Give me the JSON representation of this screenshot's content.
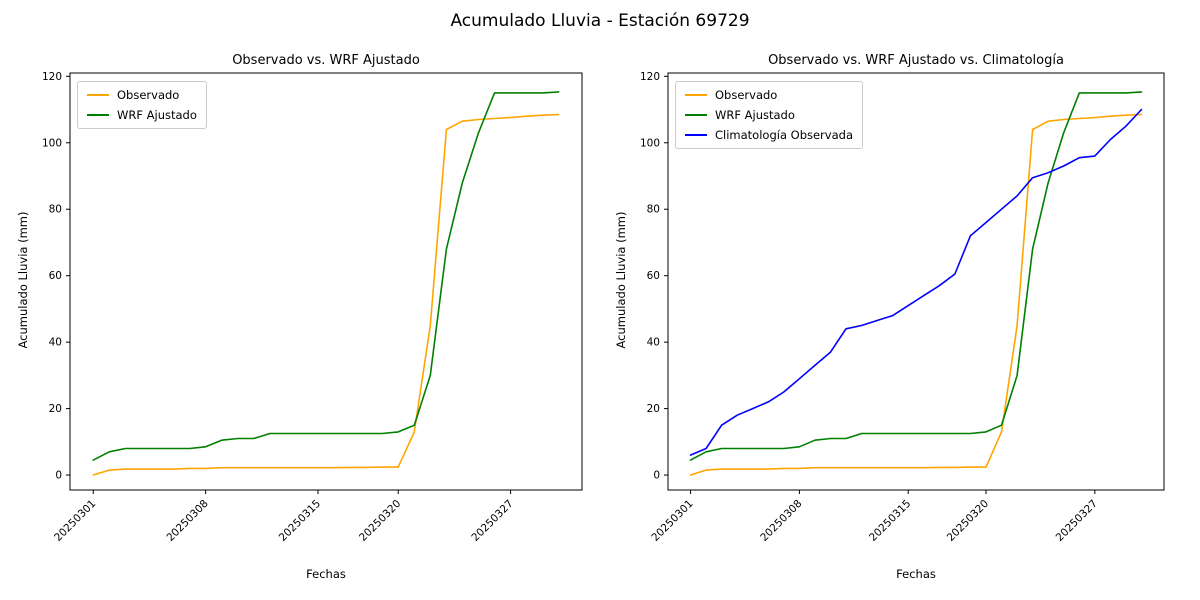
{
  "figure": {
    "title": "Acumulado Lluvia - Estación 69729",
    "background": "#ffffff"
  },
  "axes": {
    "xlabel": "Fechas",
    "ylabel": "Acumulado Lluvia (mm)",
    "yticks": [
      0,
      20,
      40,
      60,
      80,
      100,
      120
    ],
    "xticks": [
      "20250301",
      "20250308",
      "20250315",
      "20250320",
      "20250327"
    ],
    "ylim": [
      -4.5,
      121
    ],
    "axis_color": "#000000",
    "legend_border_color": "#cccccc"
  },
  "dates": [
    "20250301",
    "20250302",
    "20250303",
    "20250304",
    "20250305",
    "20250306",
    "20250307",
    "20250308",
    "20250309",
    "20250310",
    "20250311",
    "20250312",
    "20250313",
    "20250314",
    "20250315",
    "20250316",
    "20250317",
    "20250318",
    "20250319",
    "20250320",
    "20250321",
    "20250322",
    "20250323",
    "20250324",
    "20250325",
    "20250326",
    "20250327",
    "20250328",
    "20250329",
    "20250330"
  ],
  "chart_data": [
    {
      "type": "line",
      "title": "Observado vs. WRF Ajustado",
      "xlabel": "Fechas",
      "ylabel": "Acumulado Lluvia (mm)",
      "legend_position": "upper-left",
      "grid": false,
      "series": [
        {
          "name": "Observado",
          "color": "#FFA500",
          "values": [
            0,
            1.5,
            1.8,
            1.8,
            1.8,
            1.8,
            2.0,
            2.0,
            2.2,
            2.2,
            2.2,
            2.2,
            2.2,
            2.2,
            2.2,
            2.2,
            2.3,
            2.3,
            2.4,
            2.4,
            13,
            45,
            104,
            106.5,
            107,
            107.3,
            107.6,
            108,
            108.3,
            108.5
          ]
        },
        {
          "name": "WRF Ajustado",
          "color": "#008000",
          "values": [
            4.5,
            7,
            8,
            8,
            8,
            8,
            8,
            8.5,
            10.5,
            11,
            11,
            12.5,
            12.5,
            12.5,
            12.5,
            12.5,
            12.5,
            12.5,
            12.5,
            13,
            15,
            30,
            68,
            88,
            103,
            115,
            115,
            115,
            115,
            115.3
          ]
        }
      ]
    },
    {
      "type": "line",
      "title": "Observado vs. WRF Ajustado vs. Climatología",
      "xlabel": "Fechas",
      "ylabel": "Acumulado Lluvia (mm)",
      "legend_position": "upper-left",
      "grid": false,
      "series": [
        {
          "name": "Observado",
          "color": "#FFA500",
          "values": [
            0,
            1.5,
            1.8,
            1.8,
            1.8,
            1.8,
            2.0,
            2.0,
            2.2,
            2.2,
            2.2,
            2.2,
            2.2,
            2.2,
            2.2,
            2.2,
            2.3,
            2.3,
            2.4,
            2.4,
            13,
            45,
            104,
            106.5,
            107,
            107.3,
            107.6,
            108,
            108.3,
            108.5
          ]
        },
        {
          "name": "WRF Ajustado",
          "color": "#008000",
          "values": [
            4.5,
            7,
            8,
            8,
            8,
            8,
            8,
            8.5,
            10.5,
            11,
            11,
            12.5,
            12.5,
            12.5,
            12.5,
            12.5,
            12.5,
            12.5,
            12.5,
            13,
            15,
            30,
            68,
            88,
            103,
            115,
            115,
            115,
            115,
            115.3
          ]
        },
        {
          "name": "Climatología Observada",
          "color": "#0000FF",
          "values": [
            6,
            8,
            15,
            18,
            20,
            22,
            25,
            29,
            33,
            37,
            44,
            45,
            46.5,
            48,
            51,
            54,
            57,
            60.5,
            72,
            76,
            80,
            84,
            89.5,
            91,
            93,
            95.5,
            96,
            101,
            105,
            110
          ]
        }
      ]
    }
  ]
}
